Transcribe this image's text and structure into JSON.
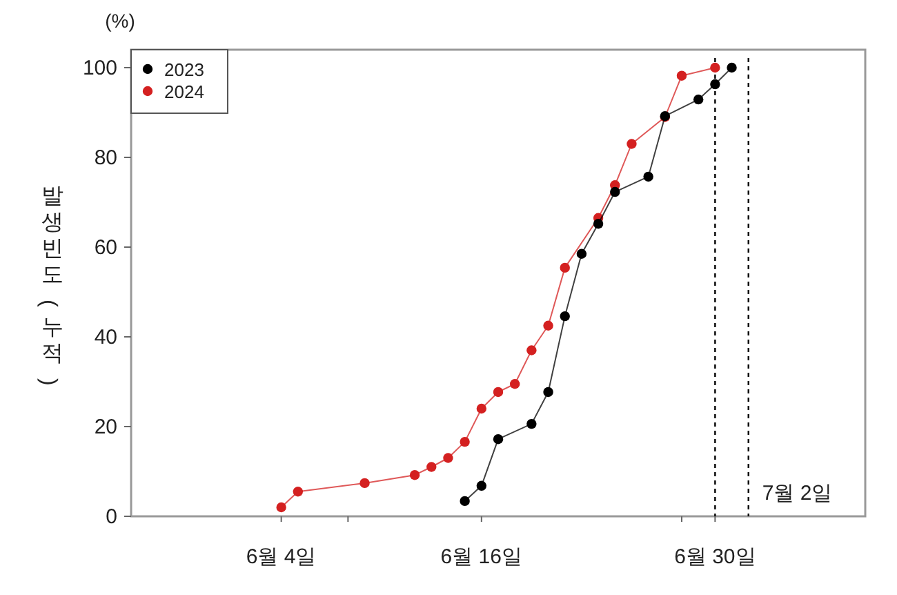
{
  "chart_data": {
    "type": "line",
    "ylabel": "발생빈도 (누적)",
    "annotations": [
      "(%)"
    ],
    "xlim": [
      "--05-26",
      "--07-09"
    ],
    "xticks": [
      {
        "value": "--06-04",
        "label": "6월 4일"
      },
      {
        "value": "--06-08",
        "label": null
      },
      {
        "value": "--06-16",
        "label": "6월 16일"
      },
      {
        "value": "--06-28",
        "label": null
      },
      {
        "value": "--06-30",
        "label": "6월 30일"
      }
    ],
    "ylim": [
      0,
      104
    ],
    "yticks": [
      0,
      20,
      40,
      60,
      80,
      100
    ],
    "series": [
      {
        "name": "2023",
        "color": "#000000",
        "x": [
          "--06-15",
          "--06-16",
          "--06-17",
          "--06-19",
          "--06-20",
          "--06-21",
          "--06-22",
          "--06-23",
          "--06-24",
          "--06-26",
          "--06-27",
          "--06-29",
          "--06-30",
          "--07-01"
        ],
        "values": [
          3.4,
          6.8,
          17.2,
          20.6,
          27.7,
          44.6,
          58.5,
          65.2,
          72.3,
          75.7,
          89.2,
          92.9,
          96.3,
          100
        ]
      },
      {
        "name": "2024",
        "color": "#d42020",
        "x": [
          "--06-04",
          "--06-05",
          "--06-09",
          "--06-12",
          "--06-13",
          "--06-14",
          "--06-15",
          "--06-16",
          "--06-17",
          "--06-18",
          "--06-19",
          "--06-20",
          "--06-21",
          "--06-23",
          "--06-24",
          "--06-25",
          "--06-27",
          "--06-28",
          "--06-30"
        ],
        "values": [
          2,
          5.5,
          7.4,
          9.2,
          11,
          13,
          16.6,
          24,
          27.7,
          29.5,
          37,
          42.5,
          55.4,
          66.5,
          73.8,
          83,
          89,
          98.2,
          100
        ]
      }
    ],
    "ref_lines": [
      {
        "axis": "x",
        "value": "--06-30",
        "label": null,
        "line_style": "dashed",
        "color": "#000000"
      },
      {
        "axis": "x",
        "value": "--07-02",
        "label": "7월 2일",
        "line_style": "dashed",
        "color": "#000000"
      }
    ],
    "marker": "circle",
    "line_style": "solid",
    "grid": false,
    "legend": "top left"
  }
}
